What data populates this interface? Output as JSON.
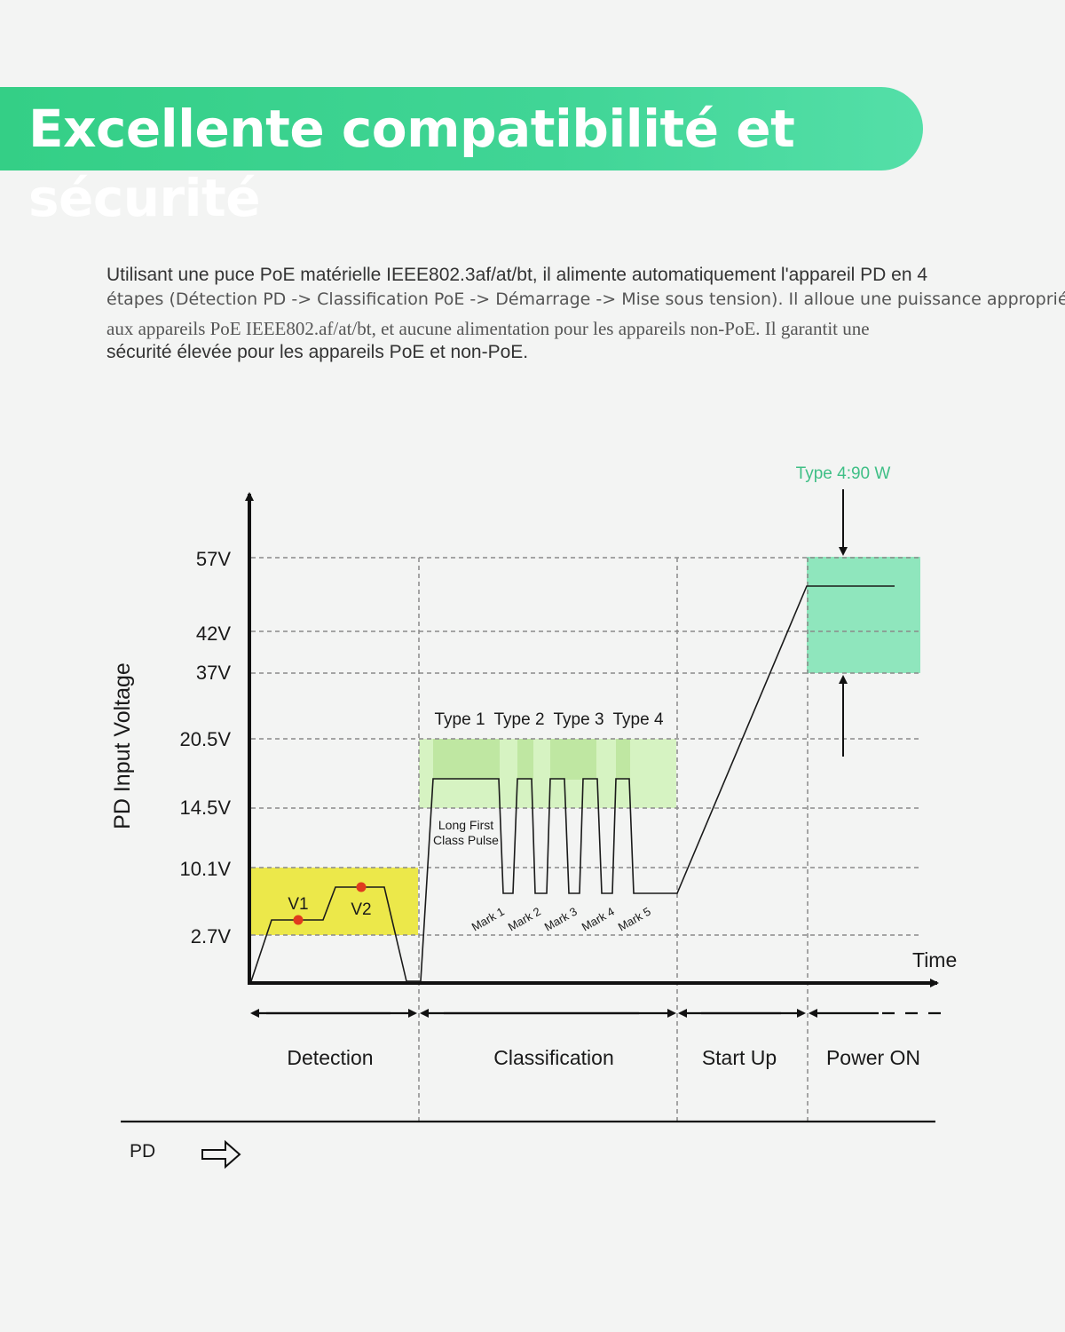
{
  "banner": {
    "title": "Excellente compatibilité et sécurité"
  },
  "description": {
    "line1": "Utilisant une puce PoE matérielle IEEE802.3af/at/bt, il alimente automatiquement l'appareil PD en 4",
    "line2": "étapes (Détection PD -> Classification PoE -> Démarrage -> Mise sous tension). Il alloue une puissance appropriée",
    "line3": "aux appareils PoE IEEE802.af/at/bt, et aucune alimentation pour les appareils non-PoE. Il garantit une",
    "line4": "sécurité élevée pour les appareils PoE et non-PoE."
  },
  "chart_data": {
    "type": "line",
    "ylabel": "PD Input Voltage",
    "xlabel": "Time",
    "y_ticks": [
      "57V",
      "42V",
      "37V",
      "20.5V",
      "14.5V",
      "10.1V",
      "2.7V"
    ],
    "phases": [
      "Detection",
      "Classification",
      "Start Up",
      "Power ON"
    ],
    "detection_points": [
      "V1",
      "V2"
    ],
    "type_labels": [
      "Type 1",
      "Type 2",
      "Type 3",
      "Type 4"
    ],
    "marks": [
      "Mark 1",
      "Mark 2",
      "Mark 3",
      "Mark 4",
      "Mark 5"
    ],
    "pulse_label_1": "Long First",
    "pulse_label_2": "Class Pulse",
    "power_label": "Type 4:90 W",
    "footer_label": "PD",
    "colors": {
      "detection_zone": "#ece84a",
      "class_zone": "#c4ecac",
      "power_zone": "#8fe6bd",
      "power_text": "#3fbf86",
      "point": "#e03a1e"
    }
  }
}
